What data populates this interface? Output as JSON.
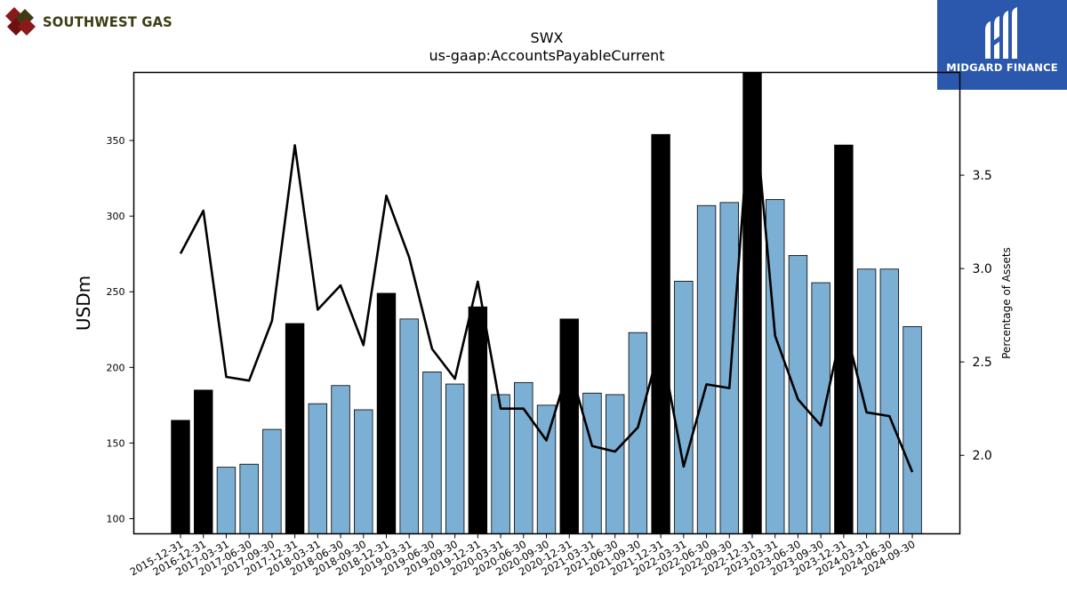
{
  "logos": {
    "left_text": "SOUTHWEST GAS",
    "right_text": "MIDGARD FINANCE"
  },
  "colors": {
    "bar_regular": "#7bafd4",
    "bar_highlight": "#000000",
    "line": "#000000",
    "logo_right_bg": "#2b58ad",
    "logo_left_text": "#3d3d14"
  },
  "chart_data": {
    "type": "bar",
    "title": "SWX",
    "subtitle": "us-gaap:AccountsPayableCurrent",
    "ylabel": "USDm",
    "y2label": "Percentage of Assets",
    "ylim": [
      90,
      395
    ],
    "y2lim": [
      1.58,
      4.05
    ],
    "yticks": [
      100,
      150,
      200,
      250,
      300,
      350
    ],
    "y2ticks": [
      "2.0",
      "2.5",
      "3.0",
      "3.5"
    ],
    "categories": [
      "2015-12-31",
      "2016-12-31",
      "2017-03-31",
      "2017-06-30",
      "2017-09-30",
      "2017-12-31",
      "2018-03-31",
      "2018-06-30",
      "2018-09-30",
      "2018-12-31",
      "2019-03-31",
      "2019-06-30",
      "2019-09-30",
      "2019-12-31",
      "2020-03-31",
      "2020-06-30",
      "2020-09-30",
      "2020-12-31",
      "2021-03-31",
      "2021-06-30",
      "2021-09-30",
      "2021-12-31",
      "2022-03-31",
      "2022-06-30",
      "2022-09-30",
      "2022-12-31",
      "2023-03-31",
      "2023-06-30",
      "2023-09-30",
      "2023-12-31",
      "2024-03-31",
      "2024-06-30",
      "2024-09-30"
    ],
    "series": [
      {
        "type": "bar",
        "values": [
          165,
          185,
          134,
          136,
          159,
          229,
          176,
          188,
          172,
          249,
          232,
          197,
          189,
          240,
          182,
          190,
          175,
          232,
          183,
          182,
          223,
          354,
          257,
          307,
          309,
          400,
          311,
          274,
          256,
          347,
          265,
          265,
          227
        ],
        "highlight": [
          true,
          true,
          false,
          false,
          false,
          true,
          false,
          false,
          false,
          true,
          false,
          false,
          false,
          true,
          false,
          false,
          false,
          true,
          false,
          false,
          false,
          true,
          false,
          false,
          false,
          true,
          false,
          false,
          false,
          true,
          false,
          false,
          false
        ]
      },
      {
        "type": "line",
        "axis": "right",
        "values": [
          3.08,
          3.31,
          2.42,
          2.4,
          2.72,
          3.66,
          2.78,
          2.91,
          2.59,
          3.39,
          3.06,
          2.57,
          2.41,
          2.93,
          2.25,
          2.25,
          2.08,
          2.48,
          2.05,
          2.02,
          2.15,
          2.6,
          1.94,
          2.38,
          2.36,
          4.0,
          2.64,
          2.3,
          2.16,
          2.72,
          2.23,
          2.21,
          1.91
        ]
      }
    ]
  }
}
